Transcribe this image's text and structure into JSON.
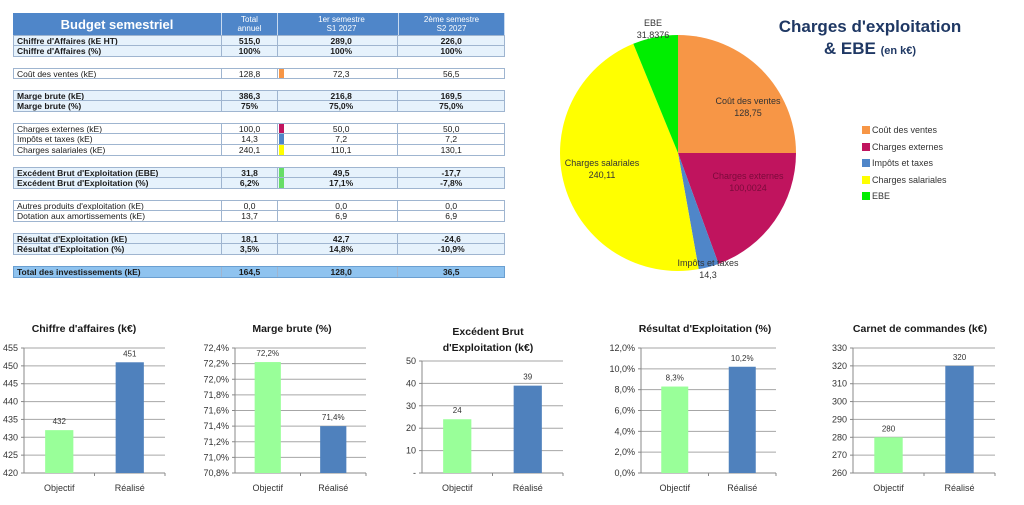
{
  "table": {
    "header": {
      "title": "Budget semestriel",
      "col_total_line1": "Total",
      "col_total_line2": "annuel",
      "col_s1_line1": "1er semestre",
      "col_s1_line2": "S1  2027",
      "col_s2_line1": "2ème semestre",
      "col_s2_line2": "S2  2027"
    },
    "rows": [
      {
        "label": "Chiffre d'Affaires (kE HT)",
        "total": "515,0",
        "s1": "289,0",
        "s2": "226,0"
      },
      {
        "label": "Chiffre d'Affaires (%)",
        "total": "100%",
        "s1": "100%",
        "s2": "100%"
      },
      {
        "label": "Coût des ventes (kE)",
        "total": "128,8",
        "s1": "72,3",
        "s2": "56,5"
      },
      {
        "label": "Marge brute (kE)",
        "total": "386,3",
        "s1": "216,8",
        "s2": "169,5"
      },
      {
        "label": "Marge brute (%)",
        "total": "75%",
        "s1": "75,0%",
        "s2": "75,0%"
      },
      {
        "label": "Charges externes (kE)",
        "total": "100,0",
        "s1": "50,0",
        "s2": "50,0"
      },
      {
        "label": "Impôts et taxes (kE)",
        "total": "14,3",
        "s1": "7,2",
        "s2": "7,2"
      },
      {
        "label": "Charges salariales (kE)",
        "total": "240,1",
        "s1": "110,1",
        "s2": "130,1"
      },
      {
        "label": "Excédent Brut d'Exploitation (EBE)",
        "total": "31,8",
        "s1": "49,5",
        "s2": "-17,7"
      },
      {
        "label": "Excédent Brut d'Exploitation (%)",
        "total": "6,2%",
        "s1": "17,1%",
        "s2": "-7,8%"
      },
      {
        "label": "Autres produits d'exploitation (kE)",
        "total": "0,0",
        "s1": "0,0",
        "s2": "0,0"
      },
      {
        "label": "Dotation aux amortissements (kE)",
        "total": "13,7",
        "s1": "6,9",
        "s2": "6,9"
      },
      {
        "label": "Résultat d'Exploitation (kE)",
        "total": "18,1",
        "s1": "42,7",
        "s2": "-24,6"
      },
      {
        "label": "Résultat d'Exploitation (%)",
        "total": "3,5%",
        "s1": "14,8%",
        "s2": "-10,9%"
      },
      {
        "label": "Total des investissements (kE)",
        "total": "164,5",
        "s1": "128,0",
        "s2": "36,5"
      }
    ],
    "marker_colors": {
      "cout_ventes": "#f79646",
      "charges_externes": "#c0145e",
      "impots": "#4f86c9",
      "salariales": "#ffff00",
      "ebe": "#66dd66"
    }
  },
  "chart_data": [
    {
      "type": "pie",
      "title_line1": "Charges d'exploitation",
      "title_line2": "& EBE",
      "title_unit": "(en k€)",
      "legend_position": "right",
      "slices": [
        {
          "label": "Coût des ventes",
          "value": 128.75,
          "value_label": "128,75",
          "color": "#f79646"
        },
        {
          "label": "Charges externes",
          "value": 100.0024,
          "value_label": "100,0024",
          "color": "#c0145e"
        },
        {
          "label": "Impôts et taxes",
          "value": 14.3,
          "value_label": "14,3",
          "color": "#4f86c9"
        },
        {
          "label": "Charges salariales",
          "value": 240.11,
          "value_label": "240,11",
          "color": "#ffff00"
        },
        {
          "label": "EBE",
          "value": 31.8376,
          "value_label": "31,8376",
          "color": "#00ee00"
        }
      ]
    },
    {
      "type": "bar",
      "title_lines": [
        "Chiffre d'affaires (k€)"
      ],
      "categories": [
        "Objectif",
        "Réalisé"
      ],
      "values": [
        432,
        451
      ],
      "value_labels": [
        "432",
        "451"
      ],
      "ylim": [
        420,
        455
      ],
      "yticks": [
        "420",
        "425",
        "430",
        "435",
        "440",
        "445",
        "450",
        "455"
      ],
      "grid": true,
      "colors": [
        "#99ff99",
        "#4f81bd"
      ]
    },
    {
      "type": "bar",
      "title_lines": [
        "Marge brute (%)"
      ],
      "categories": [
        "Objectif",
        "Réalisé"
      ],
      "values": [
        72.22,
        71.4
      ],
      "value_labels": [
        "72,2%",
        "71,4%"
      ],
      "ylim": [
        70.8,
        72.4
      ],
      "yticks": [
        "70,8%",
        "71,0%",
        "71,2%",
        "71,4%",
        "71,6%",
        "71,8%",
        "72,0%",
        "72,2%",
        "72,4%"
      ],
      "grid": true,
      "colors": [
        "#99ff99",
        "#4f81bd"
      ]
    },
    {
      "type": "bar",
      "title_lines": [
        "Excédent Brut",
        "d'Exploitation (k€)"
      ],
      "categories": [
        "Objectif",
        "Réalisé"
      ],
      "values": [
        24,
        39
      ],
      "value_labels": [
        "24",
        "39"
      ],
      "ylim": [
        0,
        50
      ],
      "yticks": [
        "-",
        "10",
        "20",
        "30",
        "40",
        "50"
      ],
      "grid": true,
      "colors": [
        "#99ff99",
        "#4f81bd"
      ]
    },
    {
      "type": "bar",
      "title_lines": [
        "Résultat d'Exploitation (%)"
      ],
      "categories": [
        "Objectif",
        "Réalisé"
      ],
      "values": [
        8.3,
        10.2
      ],
      "value_labels": [
        "8,3%",
        "10,2%"
      ],
      "ylim": [
        0,
        12
      ],
      "yticks": [
        "0,0%",
        "2,0%",
        "4,0%",
        "6,0%",
        "8,0%",
        "10,0%",
        "12,0%"
      ],
      "grid": true,
      "colors": [
        "#99ff99",
        "#4f81bd"
      ]
    },
    {
      "type": "bar",
      "title_lines": [
        "Carnet de commandes (k€)"
      ],
      "categories": [
        "Objectif",
        "Réalisé"
      ],
      "values": [
        280,
        320
      ],
      "value_labels": [
        "280",
        "320"
      ],
      "ylim": [
        260,
        330
      ],
      "yticks": [
        "260",
        "270",
        "280",
        "290",
        "300",
        "310",
        "320",
        "330"
      ],
      "grid": true,
      "colors": [
        "#99ff99",
        "#4f81bd"
      ]
    }
  ]
}
